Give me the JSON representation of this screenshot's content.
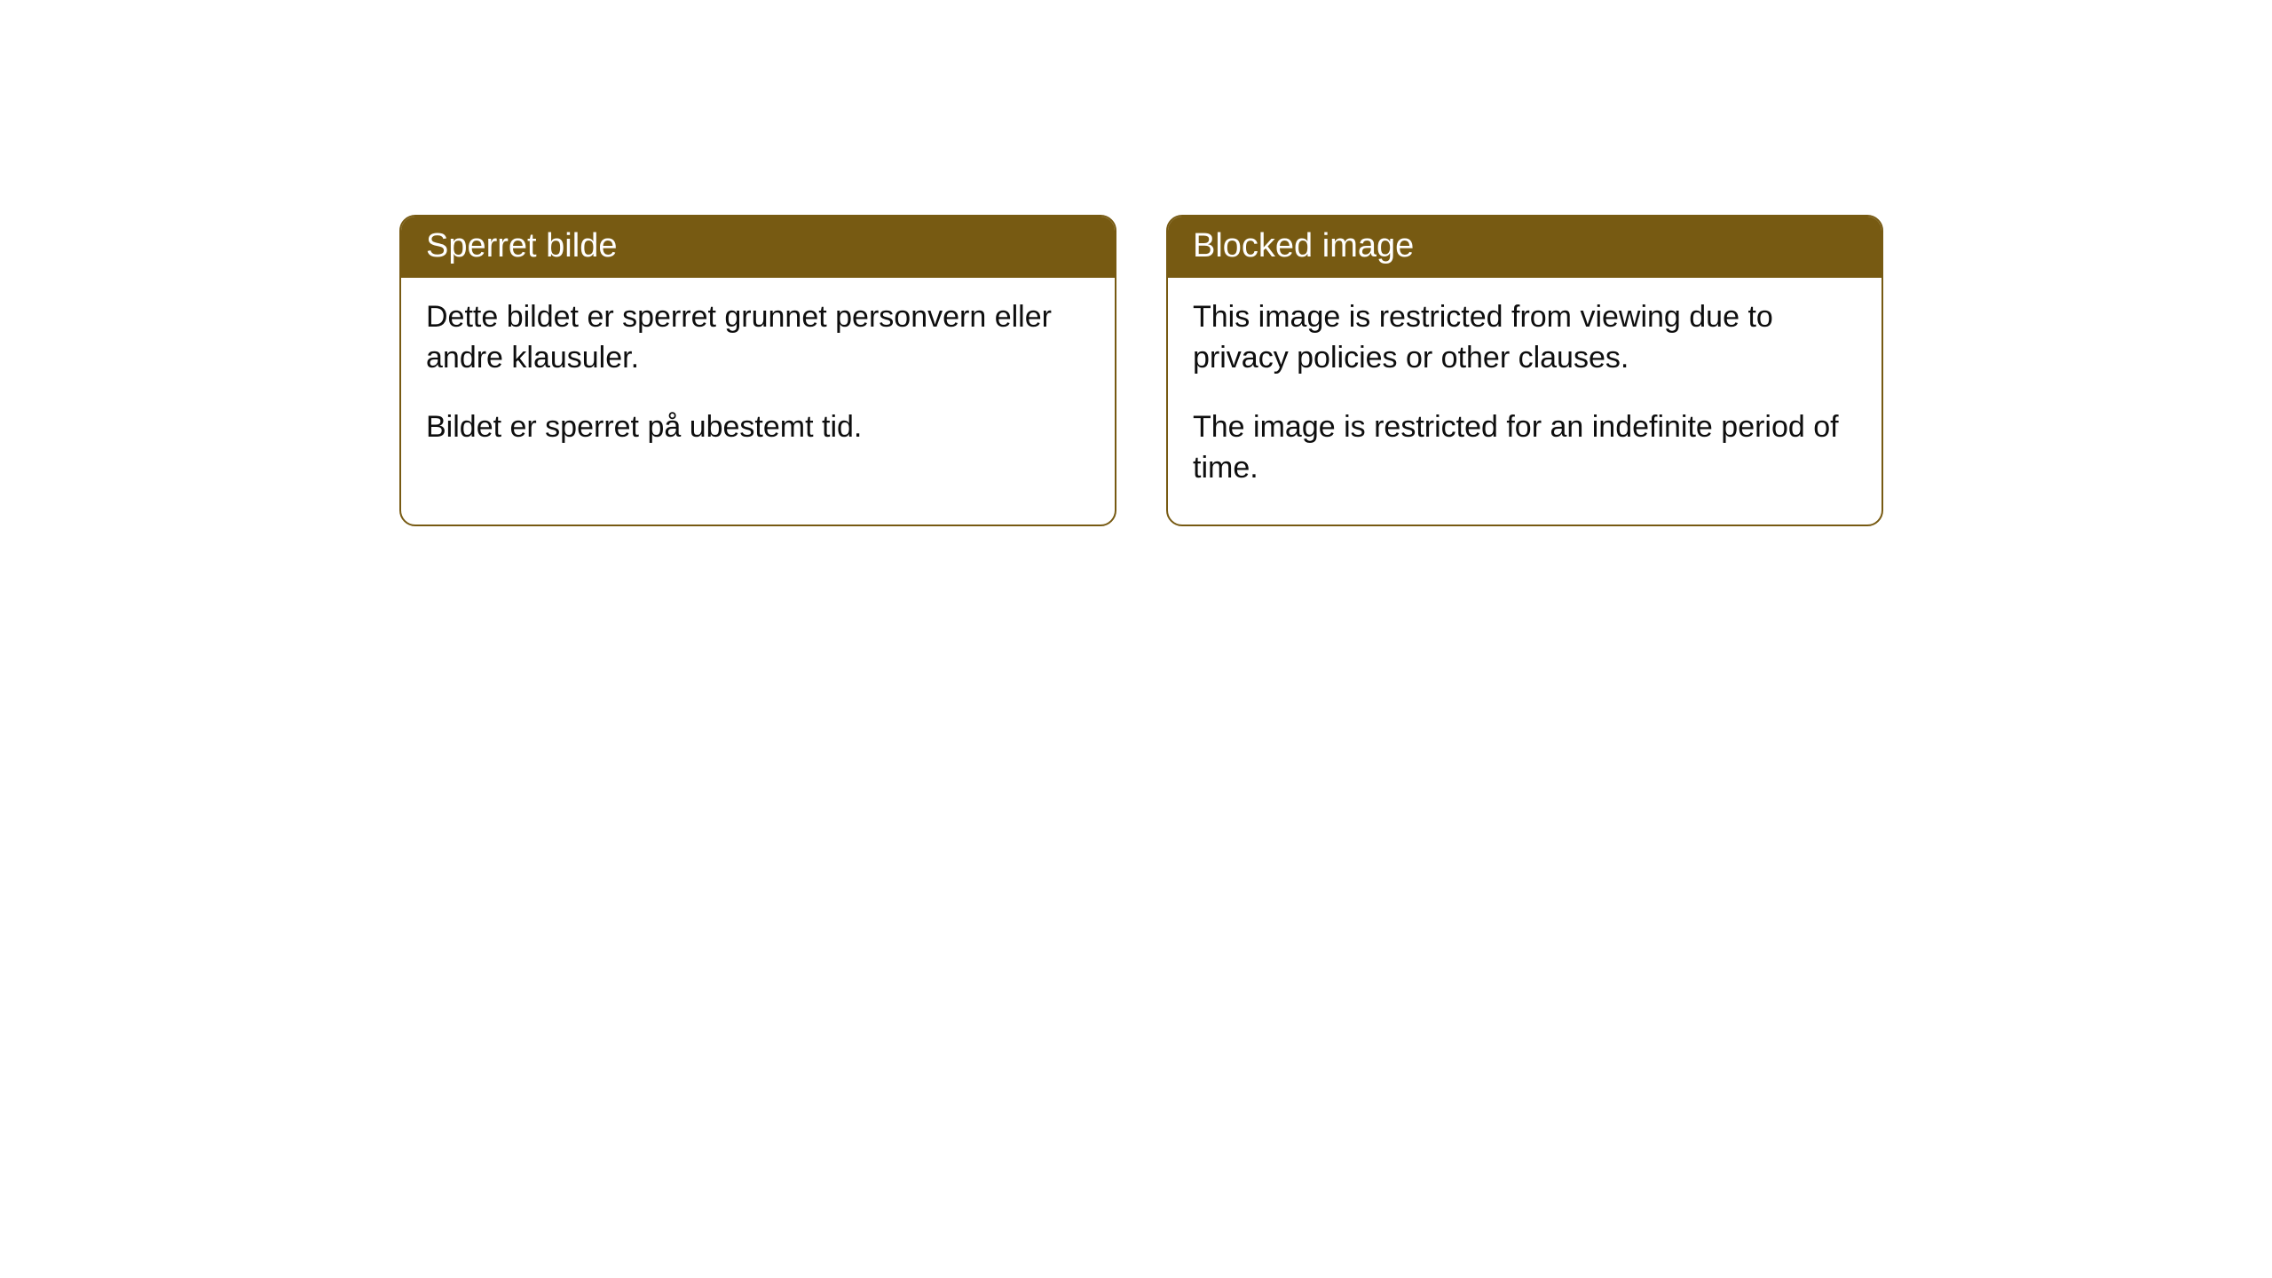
{
  "cards": [
    {
      "title": "Sperret bilde",
      "paragraph1": "Dette bildet er sperret grunnet personvern eller andre klausuler.",
      "paragraph2": "Bildet er sperret på ubestemt tid."
    },
    {
      "title": "Blocked image",
      "paragraph1": "This image is restricted from viewing due to privacy policies or other clauses.",
      "paragraph2": "The image is restricted for an indefinite period of time."
    }
  ],
  "style": {
    "header_bg": "#775a12",
    "header_text_color": "#ffffff",
    "border_color": "#775a12",
    "body_text_color": "#0e0e0e",
    "page_bg": "#ffffff",
    "border_radius": 18,
    "title_fontsize": 38,
    "body_fontsize": 34
  }
}
